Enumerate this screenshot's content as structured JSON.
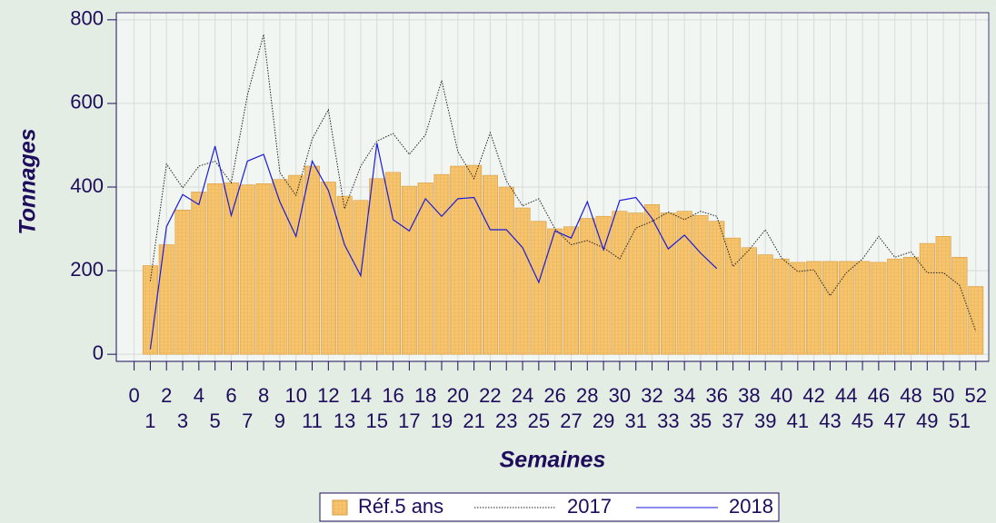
{
  "chart_data": {
    "type": "bar_line",
    "ylabel": "Tonnages",
    "xlabel": "Semaines",
    "x": [
      1,
      2,
      3,
      4,
      5,
      6,
      7,
      8,
      9,
      10,
      11,
      12,
      13,
      14,
      15,
      16,
      17,
      18,
      19,
      20,
      21,
      22,
      23,
      24,
      25,
      26,
      27,
      28,
      29,
      30,
      31,
      32,
      33,
      34,
      35,
      36,
      37,
      38,
      39,
      40,
      41,
      42,
      43,
      44,
      45,
      46,
      47,
      48,
      49,
      50,
      51,
      52
    ],
    "series": [
      {
        "name": "Réf.5 ans",
        "kind": "bar",
        "color": "#f7c46e",
        "edge": "#d69a3c",
        "values": [
          212,
          262,
          345,
          388,
          408,
          410,
          405,
          408,
          418,
          428,
          450,
          412,
          378,
          368,
          420,
          435,
          402,
          410,
          430,
          450,
          452,
          428,
          400,
          350,
          318,
          300,
          305,
          325,
          330,
          342,
          338,
          358,
          338,
          342,
          332,
          318,
          278,
          255,
          238,
          228,
          220,
          222,
          222,
          222,
          222,
          220,
          228,
          232,
          265,
          282,
          232,
          162
        ]
      },
      {
        "name": "2017",
        "kind": "line",
        "color": "#222222",
        "dash": "1.5 1.5",
        "values": [
          175,
          455,
          398,
          450,
          462,
          410,
          620,
          765,
          435,
          380,
          515,
          585,
          348,
          450,
          510,
          528,
          478,
          525,
          655,
          485,
          420,
          530,
          415,
          355,
          372,
          300,
          262,
          272,
          255,
          228,
          302,
          318,
          340,
          322,
          342,
          330,
          210,
          250,
          298,
          230,
          198,
          202,
          140,
          195,
          228,
          282,
          232,
          245,
          195,
          195,
          165,
          55
        ]
      },
      {
        "name": "2018",
        "kind": "line",
        "color": "#1a1adc",
        "values": [
          12,
          305,
          382,
          358,
          498,
          332,
          462,
          478,
          365,
          282,
          462,
          392,
          262,
          188,
          505,
          322,
          295,
          372,
          330,
          372,
          375,
          298,
          298,
          255,
          172,
          295,
          278,
          365,
          250,
          368,
          375,
          325,
          252,
          285,
          242,
          205,
          null,
          null,
          null,
          null,
          null,
          null,
          null,
          null,
          null,
          null,
          null,
          null,
          null,
          null,
          null,
          null
        ]
      }
    ],
    "xlim": [
      -1.1,
      52.8
    ],
    "xticks": [
      0,
      1,
      2,
      3,
      4,
      5,
      6,
      7,
      8,
      9,
      10,
      11,
      12,
      13,
      14,
      15,
      16,
      17,
      18,
      19,
      20,
      21,
      22,
      23,
      24,
      25,
      26,
      27,
      28,
      29,
      30,
      31,
      32,
      33,
      34,
      35,
      36,
      37,
      38,
      39,
      40,
      41,
      42,
      43,
      44,
      45,
      46,
      47,
      48,
      49,
      50,
      51,
      52
    ],
    "ylim": [
      -17,
      817
    ],
    "yticks": [
      0,
      200,
      400,
      600,
      800
    ],
    "grid": true,
    "legend": "bottom"
  }
}
